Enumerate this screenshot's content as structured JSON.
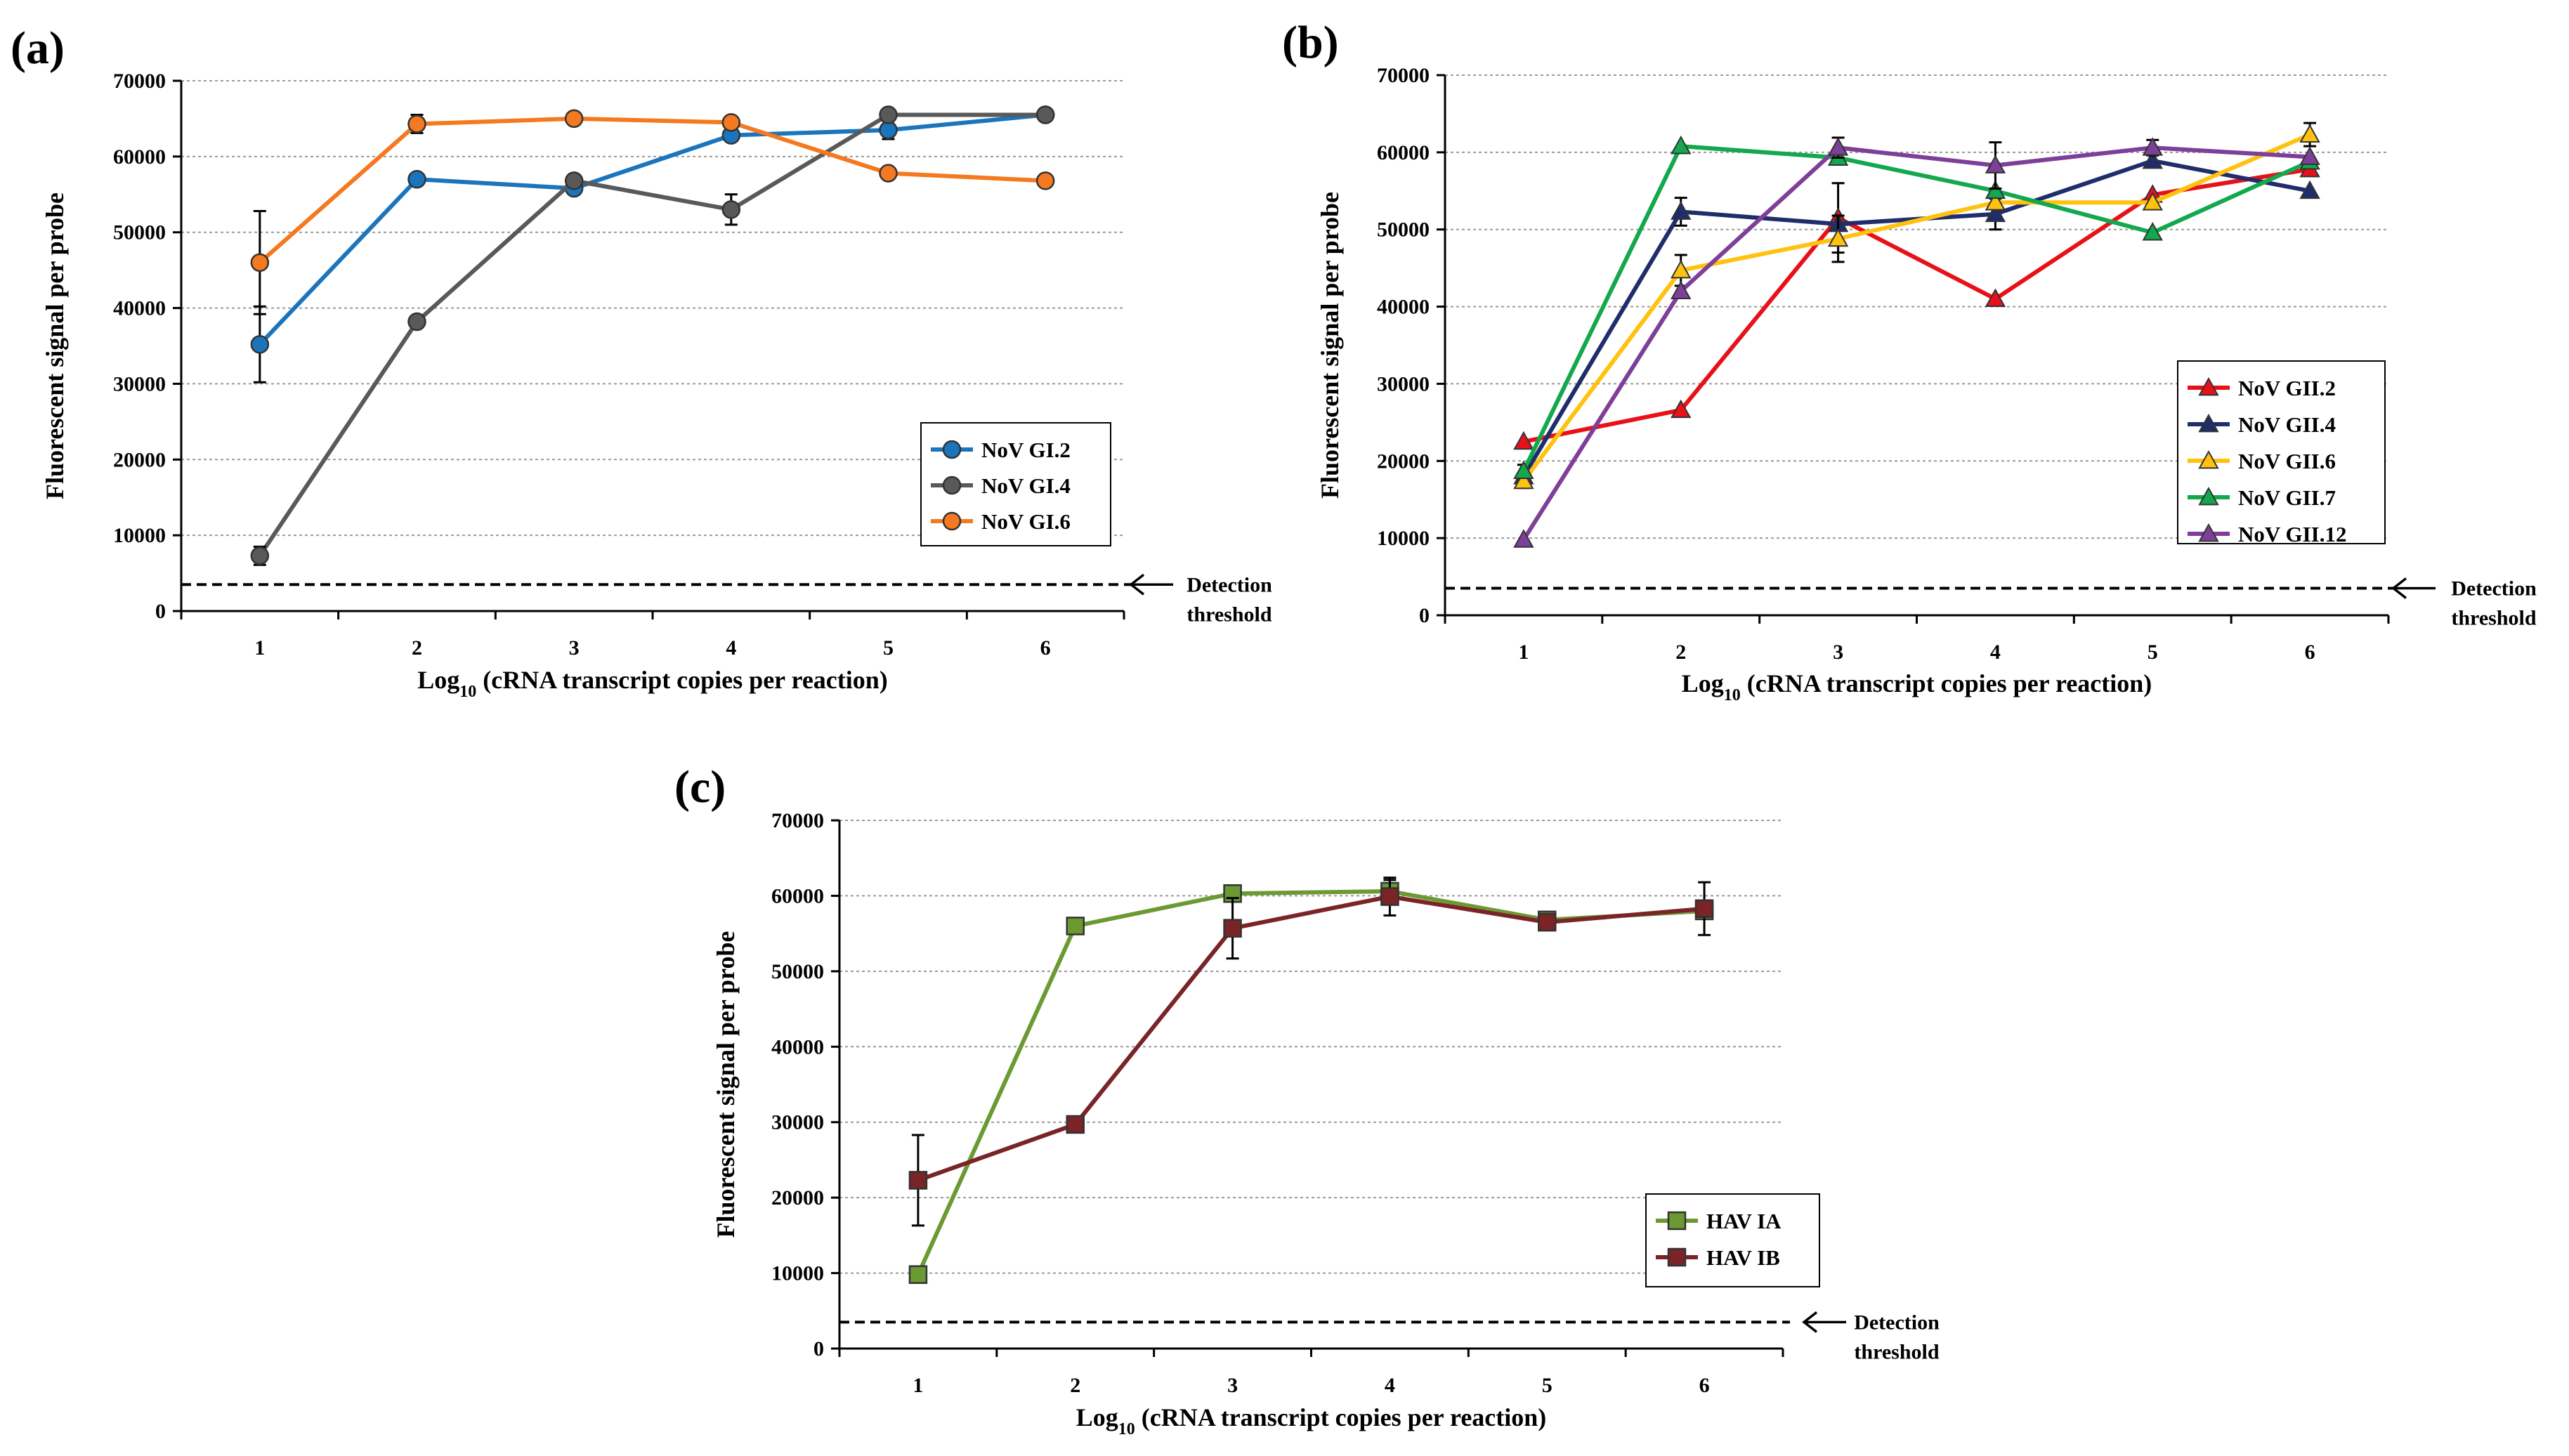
{
  "chart_data": [
    {
      "panel_label": "(a)",
      "type": "line",
      "xlabel": "Log10 (cRNA transcript copies per reaction)",
      "xlabel_main": "Log",
      "xlabel_sub": "10",
      "xlabel_rest": " (cRNA transcript copies per reaction)",
      "ylabel": "Fluorescent signal per probe",
      "x": [
        1,
        2,
        3,
        4,
        5,
        6
      ],
      "x_ticks": [
        "1",
        "2",
        "3",
        "4",
        "5",
        "6"
      ],
      "ylim": [
        0,
        70000
      ],
      "y_ticks": [
        "0",
        "10000",
        "20000",
        "30000",
        "40000",
        "50000",
        "60000",
        "70000"
      ],
      "grid": true,
      "threshold_value": 3500,
      "threshold_label_1": "Detection",
      "threshold_label_2": "threshold",
      "legend_position": "lower-right",
      "series": [
        {
          "name": "NoV GI.2",
          "color": "#1b75bc",
          "marker": "circle",
          "values": [
            35200,
            57000,
            55800,
            62800,
            63500,
            65500
          ],
          "errors": [
            5000,
            0,
            0,
            0,
            1200,
            0
          ]
        },
        {
          "name": "NoV GI.4",
          "color": "#595959",
          "marker": "circle",
          "values": [
            7300,
            38200,
            56800,
            53000,
            65500,
            65500
          ],
          "errors": [
            1200,
            0,
            0,
            2000,
            0,
            0
          ]
        },
        {
          "name": "NoV GI.6",
          "color": "#f47920",
          "marker": "circle",
          "values": [
            46000,
            64300,
            65000,
            64500,
            57800,
            56800
          ],
          "errors": [
            6800,
            1200,
            0,
            0,
            0,
            0
          ]
        }
      ]
    },
    {
      "panel_label": "(b)",
      "type": "line",
      "xlabel": "Log10 (cRNA transcript copies per reaction)",
      "xlabel_main": "Log",
      "xlabel_sub": "10",
      "xlabel_rest": " (cRNA transcript copies per reaction)",
      "ylabel": "Fluorescent signal per probe",
      "x": [
        1,
        2,
        3,
        4,
        5,
        6
      ],
      "x_ticks": [
        "1",
        "2",
        "3",
        "4",
        "5",
        "6"
      ],
      "ylim": [
        0,
        70000
      ],
      "y_ticks": [
        "0",
        "10000",
        "20000",
        "30000",
        "40000",
        "50000",
        "60000",
        "70000"
      ],
      "grid": true,
      "threshold_value": 3500,
      "threshold_label_1": "Detection",
      "threshold_label_2": "threshold",
      "legend_position": "lower-right",
      "series": [
        {
          "name": "NoV GII.2",
          "color": "#e8111a",
          "marker": "triangle",
          "values": [
            22500,
            26600,
            51500,
            41000,
            54500,
            57800
          ],
          "errors": [
            0,
            0,
            4500,
            0,
            0,
            0
          ]
        },
        {
          "name": "NoV GII.4",
          "color": "#1f2d6b",
          "marker": "triangle",
          "values": [
            18000,
            52300,
            50700,
            52000,
            58900,
            55000
          ],
          "errors": [
            1500,
            1800,
            0,
            2000,
            0,
            0
          ]
        },
        {
          "name": "NoV GII.6",
          "color": "#ffc20e",
          "marker": "triangle",
          "values": [
            17400,
            44700,
            48800,
            53500,
            53500,
            62300
          ],
          "errors": [
            0,
            2000,
            3000,
            0,
            0,
            1500
          ]
        },
        {
          "name": "NoV GII.7",
          "color": "#13a84d",
          "marker": "triangle",
          "values": [
            18700,
            60800,
            59300,
            55000,
            49600,
            58800
          ],
          "errors": [
            0,
            0,
            0,
            0,
            0,
            0
          ]
        },
        {
          "name": "NoV GII.12",
          "color": "#7e3f98",
          "marker": "triangle",
          "values": [
            9800,
            42000,
            60600,
            58300,
            60600,
            59400
          ],
          "errors": [
            0,
            0,
            1300,
            3000,
            1000,
            0
          ]
        }
      ]
    },
    {
      "panel_label": "(c)",
      "type": "line",
      "xlabel": "Log10 (cRNA transcript copies per reaction)",
      "xlabel_main": "Log",
      "xlabel_sub": "10",
      "xlabel_rest": " (cRNA transcript copies per reaction)",
      "ylabel": "Fluorescent signal per probe",
      "x": [
        1,
        2,
        3,
        4,
        5,
        6
      ],
      "x_ticks": [
        "1",
        "2",
        "3",
        "4",
        "5",
        "6"
      ],
      "ylim": [
        0,
        70000
      ],
      "y_ticks": [
        "0",
        "10000",
        "20000",
        "30000",
        "40000",
        "50000",
        "60000",
        "70000"
      ],
      "grid": true,
      "threshold_value": 3500,
      "threshold_label_1": "Detection",
      "threshold_label_2": "threshold",
      "legend_position": "lower-right",
      "series": [
        {
          "name": "HAV IA",
          "color": "#6b9a33",
          "marker": "square",
          "values": [
            9800,
            56000,
            60300,
            60600,
            56800,
            58000
          ],
          "errors": [
            0,
            0,
            0,
            1500,
            0,
            0
          ]
        },
        {
          "name": "HAV IB",
          "color": "#7a2428",
          "marker": "square",
          "values": [
            22300,
            29700,
            55700,
            59900,
            56500,
            58300
          ],
          "errors": [
            6000,
            0,
            4000,
            2500,
            0,
            3500
          ]
        }
      ]
    }
  ]
}
